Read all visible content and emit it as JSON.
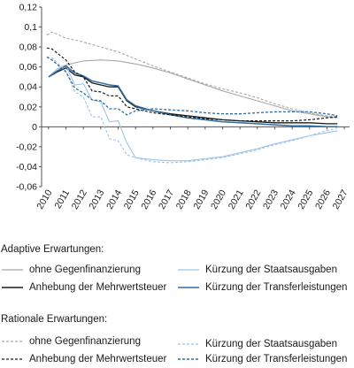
{
  "chart_data": {
    "type": "line",
    "title": "",
    "xlabel": "",
    "ylabel": "",
    "ylim": [
      -0.06,
      0.12
    ],
    "yticks": [
      "0,12",
      "0,1",
      "0,08",
      "0,06",
      "0,04",
      "0,02",
      "0",
      "-0,02",
      "-0,04",
      "-0,06"
    ],
    "xticks": [
      "2010",
      "2011",
      "2012",
      "2013",
      "2014",
      "2015",
      "2016",
      "2017",
      "2018",
      "2019",
      "2020",
      "2021",
      "2022",
      "2023",
      "2024",
      "2025",
      "2026",
      "2027"
    ],
    "grid": false,
    "legend_position": "below",
    "series": [
      {
        "name": "ohne Gegenfinanzierung",
        "group": "adaptive",
        "color": "#a8a8a8",
        "dash": "solid",
        "width": 1.1,
        "points": [
          [
            2010,
            0.05
          ],
          [
            2010.5,
            0.058
          ],
          [
            2011,
            0.062
          ],
          [
            2012,
            0.066
          ],
          [
            2013,
            0.067
          ],
          [
            2014,
            0.066
          ],
          [
            2015,
            0.063
          ],
          [
            2016,
            0.059
          ],
          [
            2017,
            0.054
          ],
          [
            2018,
            0.048
          ],
          [
            2019,
            0.042
          ],
          [
            2020,
            0.036
          ],
          [
            2021,
            0.031
          ],
          [
            2022,
            0.026
          ],
          [
            2023,
            0.021
          ],
          [
            2024,
            0.016
          ],
          [
            2025,
            0.013
          ],
          [
            2026,
            0.01
          ],
          [
            2026.6,
            0.009
          ]
        ]
      },
      {
        "name": "Anhebung der Mehrwertsteuer",
        "group": "adaptive",
        "color": "#1a1a1a",
        "dash": "solid",
        "width": 1.3,
        "points": [
          [
            2010,
            0.05
          ],
          [
            2010.5,
            0.055
          ],
          [
            2011,
            0.059
          ],
          [
            2011.5,
            0.052
          ],
          [
            2012,
            0.05
          ],
          [
            2012.5,
            0.044
          ],
          [
            2013,
            0.042
          ],
          [
            2013.5,
            0.04
          ],
          [
            2014,
            0.04
          ],
          [
            2014.5,
            0.026
          ],
          [
            2015,
            0.02
          ],
          [
            2016,
            0.016
          ],
          [
            2017,
            0.013
          ],
          [
            2018,
            0.011
          ],
          [
            2019,
            0.009
          ],
          [
            2020,
            0.007
          ],
          [
            2021,
            0.006
          ],
          [
            2022,
            0.005
          ],
          [
            2023,
            0.004
          ],
          [
            2024,
            0.004
          ],
          [
            2025,
            0.004
          ],
          [
            2026,
            0.003
          ],
          [
            2026.6,
            0.003
          ]
        ]
      },
      {
        "name": "Kürzung der Staatsausgaben",
        "group": "adaptive",
        "color": "#9dc3e6",
        "dash": "solid",
        "width": 1.1,
        "points": [
          [
            2010,
            0.05
          ],
          [
            2010.5,
            0.058
          ],
          [
            2011,
            0.062
          ],
          [
            2011.5,
            0.042
          ],
          [
            2012,
            0.043
          ],
          [
            2012.5,
            0.027
          ],
          [
            2013,
            0.025
          ],
          [
            2013.5,
            0.005
          ],
          [
            2014,
            0.006
          ],
          [
            2014.5,
            -0.016
          ],
          [
            2015,
            -0.031
          ],
          [
            2016,
            -0.033
          ],
          [
            2017,
            -0.034
          ],
          [
            2018,
            -0.034
          ],
          [
            2019,
            -0.032
          ],
          [
            2020,
            -0.03
          ],
          [
            2021,
            -0.026
          ],
          [
            2022,
            -0.022
          ],
          [
            2023,
            -0.017
          ],
          [
            2024,
            -0.013
          ],
          [
            2025,
            -0.009
          ],
          [
            2026,
            -0.006
          ],
          [
            2026.6,
            -0.004
          ]
        ]
      },
      {
        "name": "Kürzung der Transferleistungen",
        "group": "adaptive",
        "color": "#2e6da4",
        "dash": "solid",
        "width": 1.5,
        "points": [
          [
            2010,
            0.05
          ],
          [
            2010.5,
            0.056
          ],
          [
            2011,
            0.061
          ],
          [
            2011.5,
            0.054
          ],
          [
            2012,
            0.051
          ],
          [
            2012.5,
            0.046
          ],
          [
            2013,
            0.044
          ],
          [
            2013.5,
            0.042
          ],
          [
            2014,
            0.041
          ],
          [
            2014.5,
            0.027
          ],
          [
            2015,
            0.021
          ],
          [
            2016,
            0.016
          ],
          [
            2017,
            0.012
          ],
          [
            2018,
            0.009
          ],
          [
            2019,
            0.007
          ],
          [
            2020,
            0.005
          ],
          [
            2021,
            0.004
          ],
          [
            2022,
            0.003
          ],
          [
            2023,
            0.002
          ],
          [
            2024,
            0.001
          ],
          [
            2025,
            0.001
          ],
          [
            2026,
            0.0
          ],
          [
            2026.6,
            0.0
          ]
        ]
      },
      {
        "name": "ohne Gegenfinanzierung",
        "group": "rational",
        "color": "#a8a8a8",
        "dash": "dashed",
        "width": 1.1,
        "points": [
          [
            2009.9,
            0.092
          ],
          [
            2010.2,
            0.095
          ],
          [
            2011,
            0.089
          ],
          [
            2012,
            0.085
          ],
          [
            2013,
            0.08
          ],
          [
            2014,
            0.075
          ],
          [
            2015,
            0.068
          ],
          [
            2016,
            0.061
          ],
          [
            2017,
            0.055
          ],
          [
            2018,
            0.049
          ],
          [
            2019,
            0.043
          ],
          [
            2020,
            0.038
          ],
          [
            2021,
            0.034
          ],
          [
            2022,
            0.029
          ],
          [
            2023,
            0.023
          ],
          [
            2024,
            0.018
          ],
          [
            2025,
            0.014
          ],
          [
            2026,
            0.011
          ],
          [
            2026.6,
            0.01
          ]
        ]
      },
      {
        "name": "Anhebung der Mehrwertsteuer",
        "group": "rational",
        "color": "#1a1a1a",
        "dash": "dashed",
        "width": 1.2,
        "points": [
          [
            2009.9,
            0.079
          ],
          [
            2010.2,
            0.078
          ],
          [
            2011,
            0.067
          ],
          [
            2011.5,
            0.055
          ],
          [
            2012,
            0.05
          ],
          [
            2012.5,
            0.036
          ],
          [
            2013,
            0.035
          ],
          [
            2013.5,
            0.031
          ],
          [
            2014,
            0.031
          ],
          [
            2014.5,
            0.02
          ],
          [
            2015,
            0.018
          ],
          [
            2016,
            0.014
          ],
          [
            2017,
            0.012
          ],
          [
            2018,
            0.01
          ],
          [
            2019,
            0.008
          ],
          [
            2020,
            0.007
          ],
          [
            2021,
            0.006
          ],
          [
            2022,
            0.006
          ],
          [
            2023,
            0.006
          ],
          [
            2024,
            0.006
          ],
          [
            2025,
            0.007
          ],
          [
            2026,
            0.009
          ],
          [
            2026.6,
            0.01
          ]
        ]
      },
      {
        "name": "Kürzung der Staatsausgaben",
        "group": "rational",
        "color": "#9dc3e6",
        "dash": "dashed",
        "width": 1.1,
        "points": [
          [
            2009.9,
            0.07
          ],
          [
            2010.2,
            0.069
          ],
          [
            2011,
            0.056
          ],
          [
            2011.5,
            0.035
          ],
          [
            2012,
            0.03
          ],
          [
            2012.5,
            0.01
          ],
          [
            2013,
            0.01
          ],
          [
            2013.5,
            -0.012
          ],
          [
            2014,
            -0.014
          ],
          [
            2014.5,
            -0.028
          ],
          [
            2015,
            -0.031
          ],
          [
            2016,
            -0.035
          ],
          [
            2017,
            -0.036
          ],
          [
            2018,
            -0.035
          ],
          [
            2019,
            -0.033
          ],
          [
            2020,
            -0.031
          ],
          [
            2021,
            -0.027
          ],
          [
            2022,
            -0.023
          ],
          [
            2023,
            -0.018
          ],
          [
            2024,
            -0.014
          ],
          [
            2025,
            -0.009
          ],
          [
            2026,
            -0.004
          ],
          [
            2026.6,
            -0.001
          ]
        ]
      },
      {
        "name": "Kürzung der Transferleistungen",
        "group": "rational",
        "color": "#2e6da4",
        "dash": "dashed",
        "width": 1.3,
        "points": [
          [
            2009.9,
            0.07
          ],
          [
            2010.2,
            0.067
          ],
          [
            2011,
            0.055
          ],
          [
            2011.5,
            0.039
          ],
          [
            2012,
            0.034
          ],
          [
            2012.5,
            0.027
          ],
          [
            2013,
            0.026
          ],
          [
            2013.5,
            0.018
          ],
          [
            2014,
            0.018
          ],
          [
            2014.5,
            0.012
          ],
          [
            2015,
            0.016
          ],
          [
            2016,
            0.018
          ],
          [
            2017,
            0.017
          ],
          [
            2018,
            0.016
          ],
          [
            2019,
            0.014
          ],
          [
            2020,
            0.013
          ],
          [
            2021,
            0.013
          ],
          [
            2022,
            0.014
          ],
          [
            2023,
            0.015
          ],
          [
            2024,
            0.015
          ],
          [
            2025,
            0.015
          ],
          [
            2026,
            0.013
          ],
          [
            2026.6,
            0.011
          ]
        ]
      }
    ]
  },
  "legend": {
    "adaptive_title": "Adaptive Erwartungen:",
    "rational_title": "Rationale Erwartungen:",
    "adaptive_items": [
      {
        "label": "ohne Gegenfinanzierung",
        "color": "#a8a8a8",
        "dash": "solid"
      },
      {
        "label": "Kürzung der Staatsausgaben",
        "color": "#9dc3e6",
        "dash": "solid"
      },
      {
        "label": "Anhebung der Mehrwertsteuer",
        "color": "#1a1a1a",
        "dash": "solid"
      },
      {
        "label": "Kürzung der Transferleistungen",
        "color": "#2e6da4",
        "dash": "solid"
      }
    ],
    "rational_items": [
      {
        "label": "ohne Gegenfinanzierung",
        "color": "#a8a8a8",
        "dash": "dashed"
      },
      {
        "label": "Kürzung der Staatsausgaben",
        "color": "#9dc3e6",
        "dash": "dashed"
      },
      {
        "label": "Anhebung der Mehrwertsteuer",
        "color": "#1a1a1a",
        "dash": "dashed"
      },
      {
        "label": "Kürzung der Transferleistungen",
        "color": "#2e6da4",
        "dash": "dashed"
      }
    ]
  }
}
